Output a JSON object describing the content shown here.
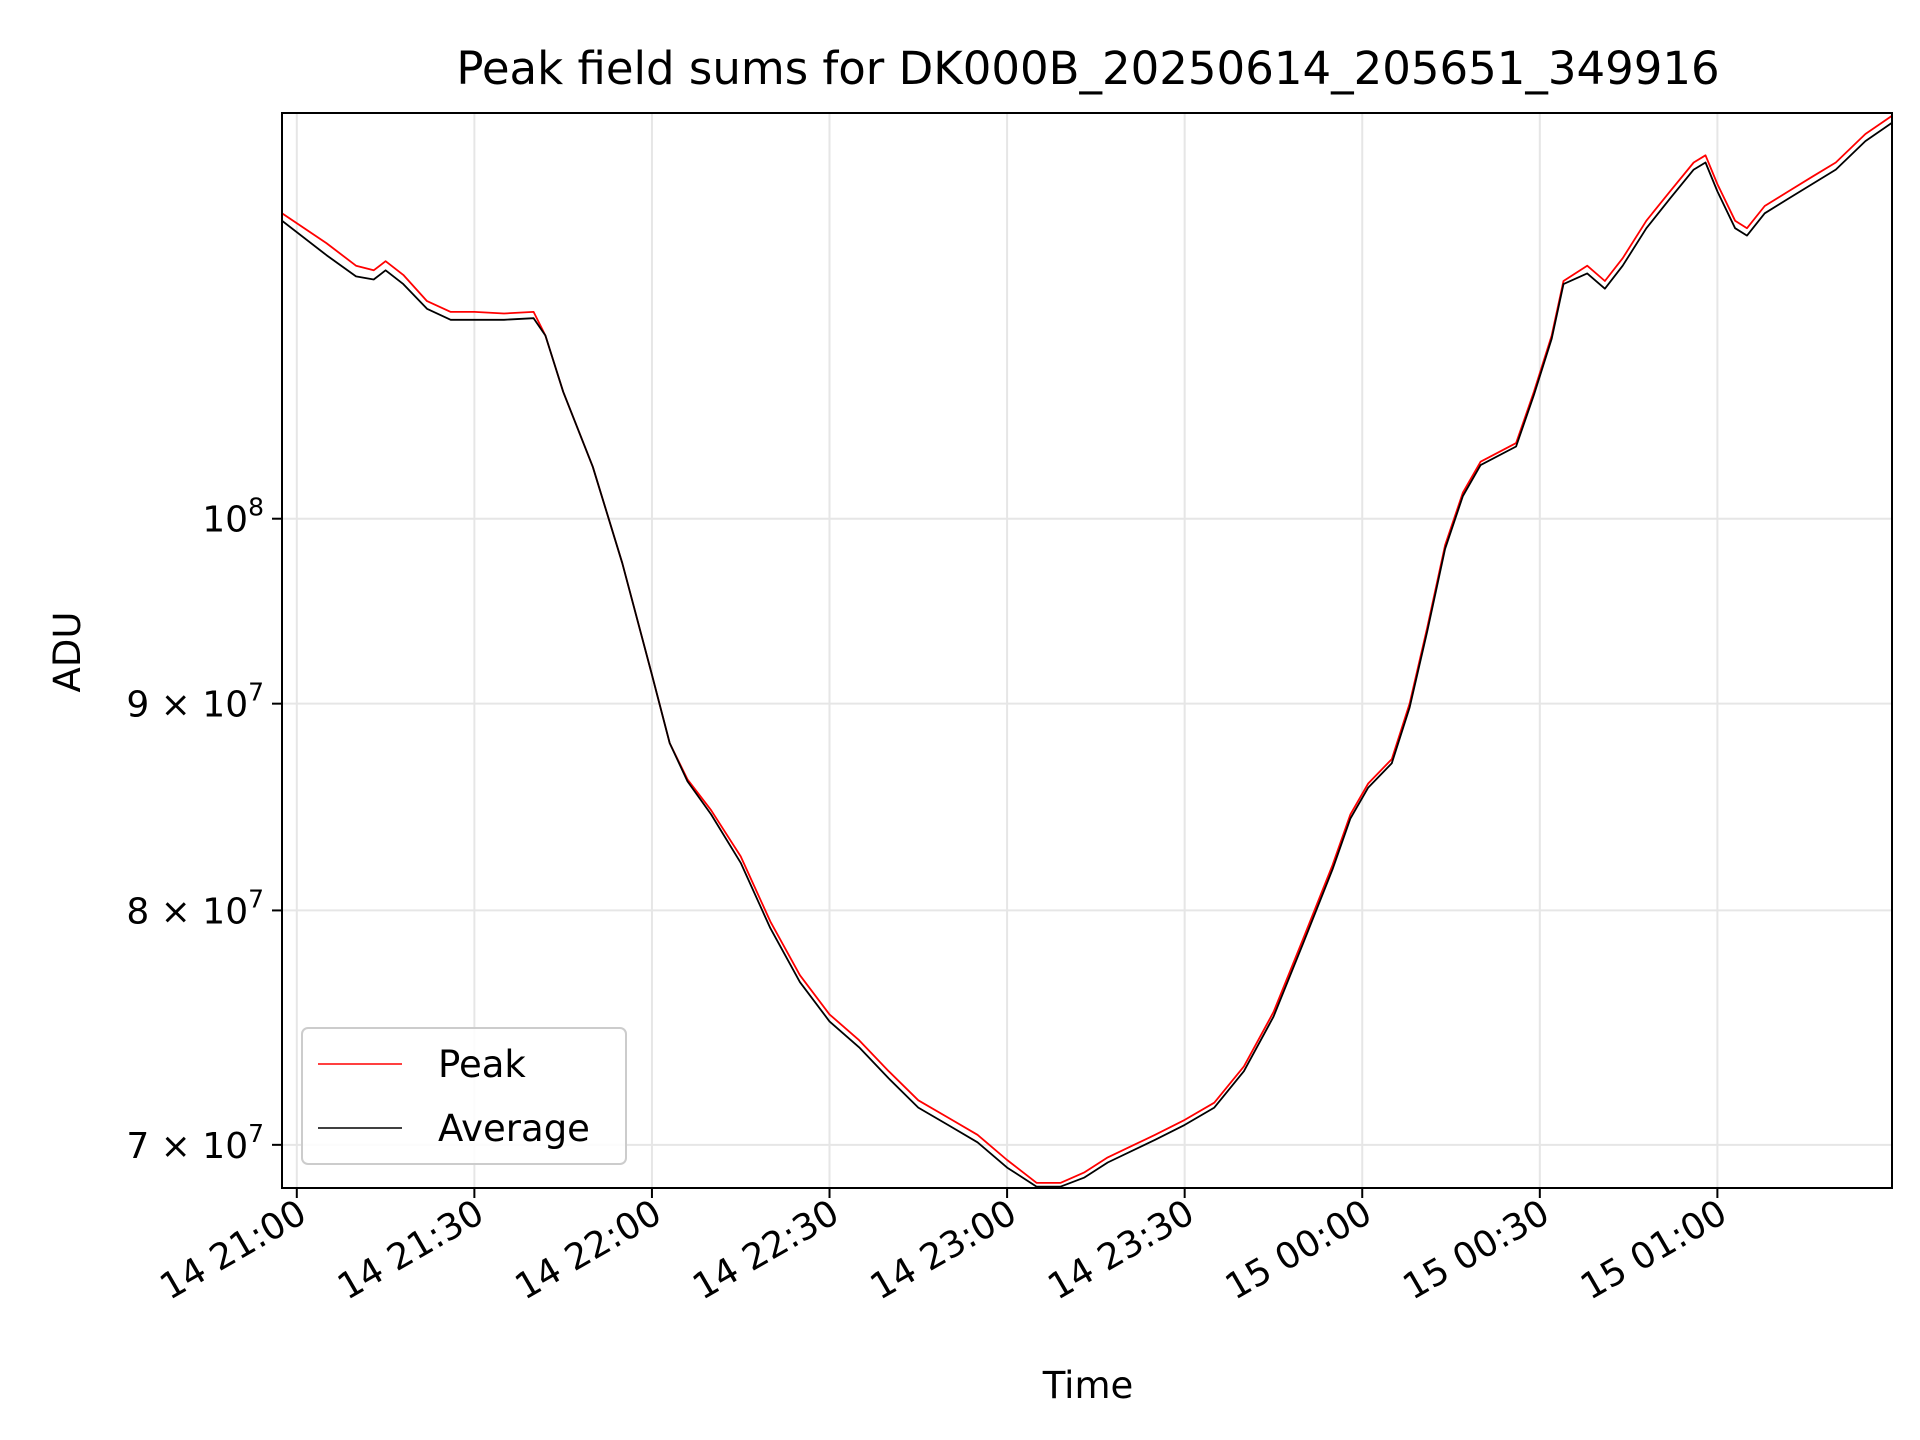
{
  "chart_data": {
    "type": "line",
    "title": "Peak field sums for DK000B_20250614_205651_349916",
    "xlabel": "Time",
    "ylabel": "ADU",
    "y_scale": "log",
    "grid": true,
    "legend_position": "lower-left",
    "x_unit": "minutes from 14 21:00",
    "xlim": [
      -2.5,
      269.5
    ],
    "ylim": [
      68300000,
      126000000
    ],
    "x_ticks": [
      {
        "x": 0,
        "label": "14 21:00"
      },
      {
        "x": 30,
        "label": "14 21:30"
      },
      {
        "x": 60,
        "label": "14 22:00"
      },
      {
        "x": 90,
        "label": "14 22:30"
      },
      {
        "x": 120,
        "label": "14 23:00"
      },
      {
        "x": 150,
        "label": "14 23:30"
      },
      {
        "x": 180,
        "label": "15 00:00"
      },
      {
        "x": 210,
        "label": "15 00:30"
      },
      {
        "x": 240,
        "label": "15 01:00"
      }
    ],
    "y_ticks": [
      {
        "y": 70000000,
        "mantissa": "7",
        "base": "10",
        "exp": "7"
      },
      {
        "y": 80000000,
        "mantissa": "8",
        "base": "10",
        "exp": "7"
      },
      {
        "y": 90000000,
        "mantissa": "9",
        "base": "10",
        "exp": "7"
      },
      {
        "y": 100000000,
        "mantissa": "",
        "base": "10",
        "exp": "8"
      }
    ],
    "series": [
      {
        "name": "Peak",
        "color": "#ff0000",
        "x": [
          -2.5,
          5,
          10,
          13,
          15,
          18,
          22,
          26,
          30,
          35,
          40,
          42,
          45,
          50,
          55,
          60,
          63,
          66,
          70,
          75,
          80,
          85,
          90,
          95,
          100,
          105,
          110,
          115,
          120,
          125,
          129,
          133,
          137,
          145,
          150,
          155,
          160,
          165,
          170,
          175,
          178,
          181,
          185,
          188,
          191,
          194,
          197,
          200,
          206,
          209,
          212,
          214,
          218,
          221,
          224,
          228,
          232,
          236,
          238,
          240,
          243,
          245,
          248,
          252,
          256,
          260,
          265,
          269.5
        ],
        "y": [
          119000000,
          117000000,
          115500000,
          115200000,
          115800000,
          114900000,
          113200000,
          112500000,
          112500000,
          112400000,
          112500000,
          111000000,
          107500000,
          103000000,
          97500000,
          91500000,
          88000000,
          86200000,
          84700000,
          82500000,
          79500000,
          77100000,
          75400000,
          74300000,
          73000000,
          71800000,
          71100000,
          70400000,
          69400000,
          68500000,
          68500000,
          68900000,
          69500000,
          70400000,
          71000000,
          71700000,
          73200000,
          75500000,
          78700000,
          82100000,
          84500000,
          86000000,
          87200000,
          90000000,
          94000000,
          98500000,
          101500000,
          103300000,
          104400000,
          107500000,
          111000000,
          114500000,
          115500000,
          114500000,
          116000000,
          118500000,
          120500000,
          122500000,
          123000000,
          121000000,
          118500000,
          118000000,
          119500000,
          120500000,
          121500000,
          122500000,
          124500000,
          125800000
        ]
      },
      {
        "name": "Average",
        "color": "#000000",
        "x": [
          -2.5,
          5,
          10,
          13,
          15,
          18,
          22,
          26,
          30,
          35,
          40,
          42,
          45,
          50,
          55,
          60,
          63,
          66,
          70,
          75,
          80,
          85,
          90,
          95,
          100,
          105,
          110,
          115,
          120,
          125,
          129,
          133,
          137,
          145,
          150,
          155,
          160,
          165,
          170,
          175,
          178,
          181,
          185,
          188,
          191,
          194,
          197,
          200,
          206,
          209,
          212,
          214,
          218,
          221,
          224,
          228,
          232,
          236,
          238,
          240,
          243,
          245,
          248,
          252,
          256,
          260,
          265,
          269.5
        ],
        "y": [
          118500000,
          116200000,
          114800000,
          114600000,
          115200000,
          114300000,
          112700000,
          112000000,
          112000000,
          112000000,
          112100000,
          111000000,
          107500000,
          103000000,
          97500000,
          91500000,
          88000000,
          86100000,
          84500000,
          82200000,
          79200000,
          76800000,
          75100000,
          74000000,
          72700000,
          71500000,
          70800000,
          70100000,
          69100000,
          68350000,
          68350000,
          68700000,
          69300000,
          70200000,
          70800000,
          71500000,
          73000000,
          75300000,
          78500000,
          81900000,
          84300000,
          85800000,
          87000000,
          89800000,
          93800000,
          98300000,
          101300000,
          103100000,
          104200000,
          107300000,
          110800000,
          114300000,
          115000000,
          114000000,
          115500000,
          118000000,
          120000000,
          122000000,
          122500000,
          120500000,
          118000000,
          117500000,
          119000000,
          120000000,
          121000000,
          122000000,
          124000000,
          125300000
        ]
      }
    ]
  }
}
